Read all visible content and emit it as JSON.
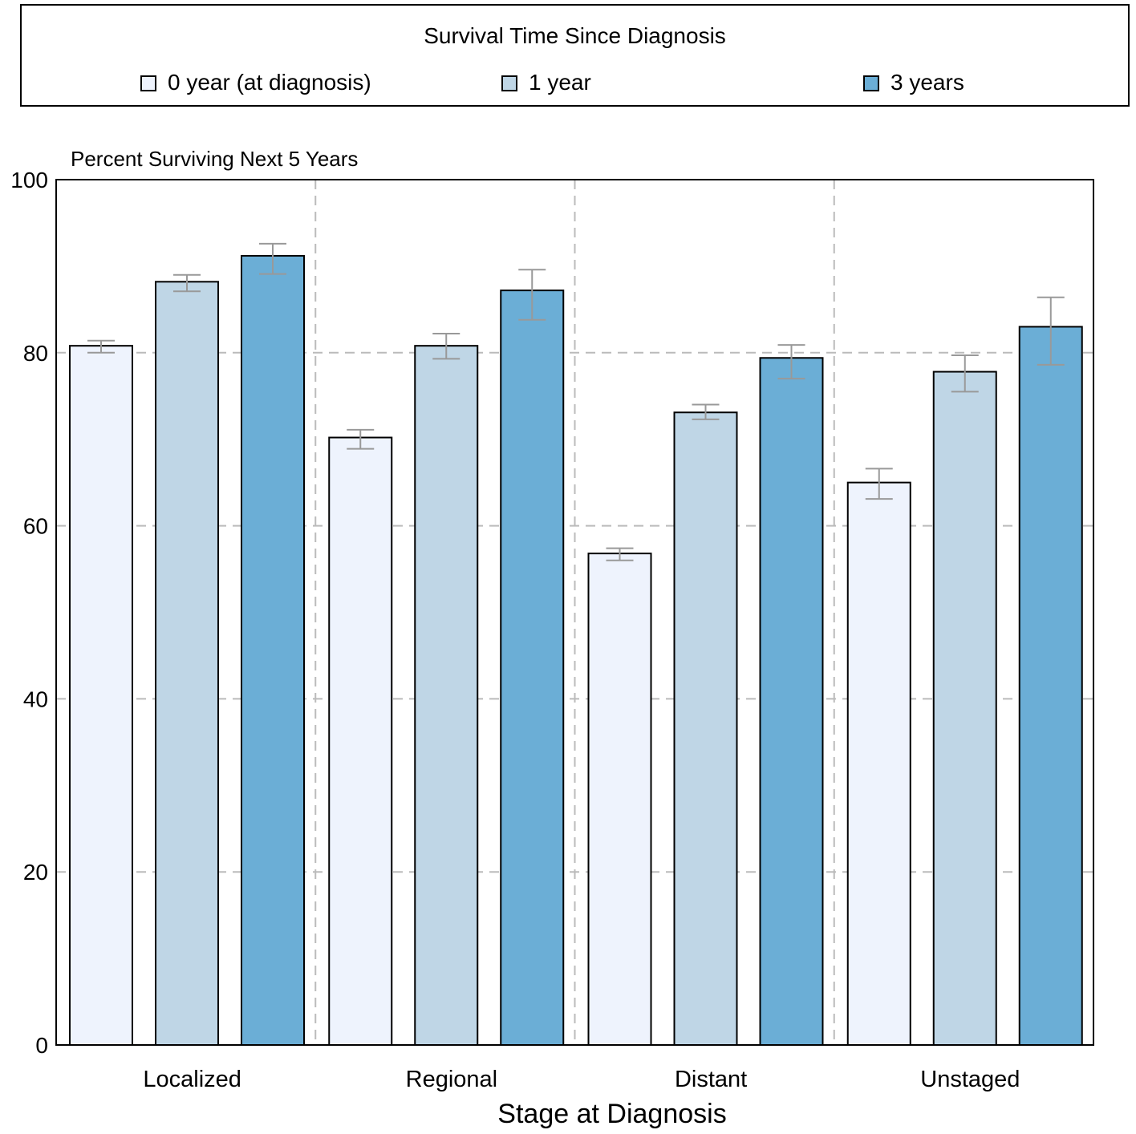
{
  "legend": {
    "title": "Survival Time Since Diagnosis",
    "items": [
      {
        "label": "0 year (at diagnosis)",
        "color": "#eef3fd"
      },
      {
        "label": "1 year",
        "color": "#bfd6e6"
      },
      {
        "label": "3 years",
        "color": "#6baed6"
      }
    ]
  },
  "chart_data": {
    "type": "bar",
    "title": "",
    "ylabel": "Percent Surviving Next 5 Years",
    "xlabel": "Stage at Diagnosis",
    "categories": [
      "Localized",
      "Regional",
      "Distant",
      "Unstaged"
    ],
    "ylim": [
      0,
      100
    ],
    "yticks": [
      0,
      20,
      40,
      60,
      80,
      100
    ],
    "grid": true,
    "legend_position": "top",
    "series": [
      {
        "name": "0 year (at diagnosis)",
        "color": "#eef3fd",
        "values": [
          80.8,
          70.2,
          56.8,
          65.0
        ],
        "error_low": [
          80.0,
          68.9,
          56.0,
          63.1
        ],
        "error_high": [
          81.4,
          71.1,
          57.4,
          66.6
        ]
      },
      {
        "name": "1 year",
        "color": "#bfd6e6",
        "values": [
          88.2,
          80.8,
          73.1,
          77.8
        ],
        "error_low": [
          87.1,
          79.3,
          72.3,
          75.5
        ],
        "error_high": [
          89.0,
          82.2,
          74.0,
          79.7
        ]
      },
      {
        "name": "3 years",
        "color": "#6baed6",
        "values": [
          91.2,
          87.2,
          79.4,
          83.0
        ],
        "error_low": [
          89.1,
          83.8,
          77.0,
          78.6
        ],
        "error_high": [
          92.6,
          89.6,
          80.9,
          86.4
        ]
      }
    ]
  }
}
